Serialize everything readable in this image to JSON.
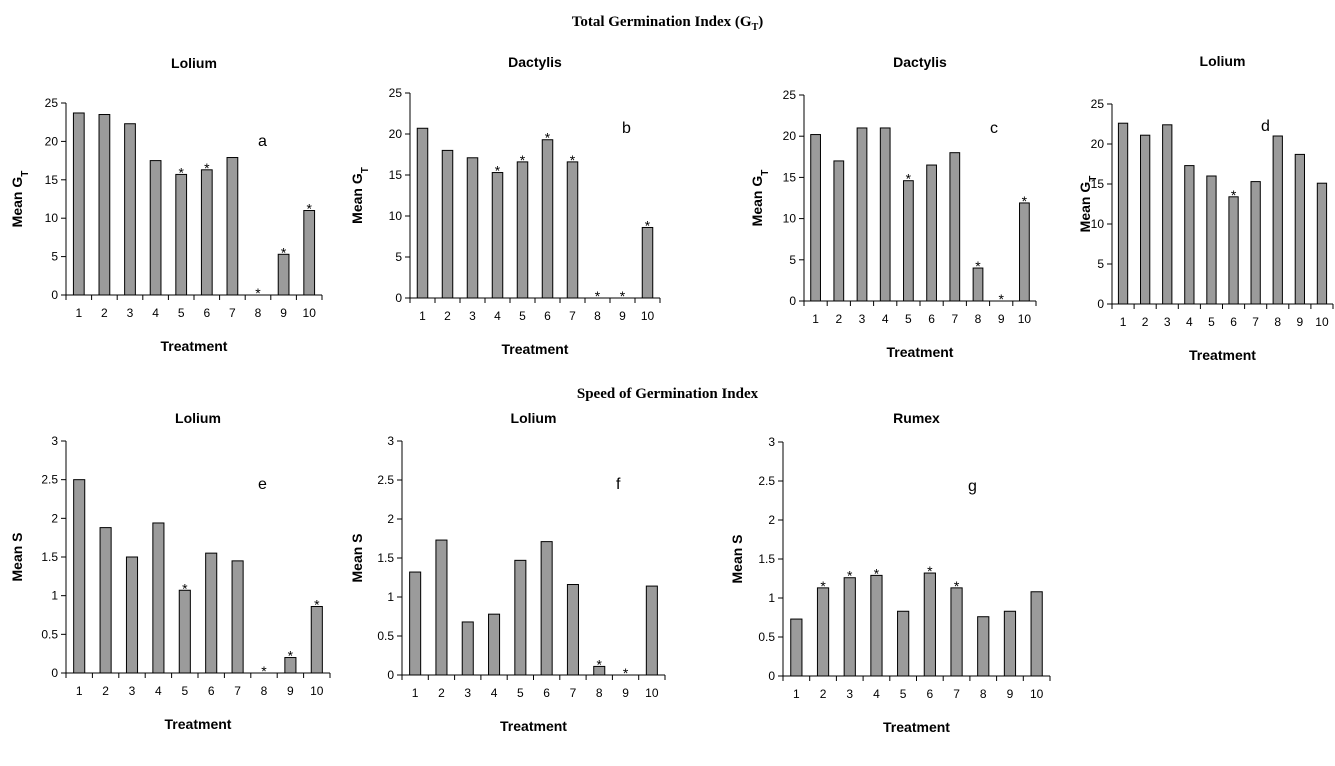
{
  "figure": {
    "top_title": "Total Germination Index (G",
    "top_title_sub": "T",
    "top_title_end": ")",
    "bottom_title": "Speed of Germination Index"
  },
  "chart_data": [
    {
      "type": "bar",
      "panel": "a",
      "title": "Lolium",
      "xlabel": "Treatment",
      "ylabel": "Mean G",
      "ylabel_sub": "T",
      "categories": [
        "1",
        "2",
        "3",
        "4",
        "5",
        "6",
        "7",
        "8",
        "9",
        "10"
      ],
      "values": [
        23.7,
        23.5,
        22.3,
        17.5,
        15.7,
        16.3,
        17.9,
        0,
        5.3,
        11.0
      ],
      "significant": [
        false,
        false,
        false,
        false,
        true,
        true,
        false,
        true,
        true,
        true
      ],
      "ylim": [
        0,
        25
      ],
      "yticks": [
        0,
        5,
        10,
        15,
        20,
        25
      ],
      "ytick_labels": [
        "0",
        "5",
        "10",
        "15",
        "20",
        "25"
      ]
    },
    {
      "type": "bar",
      "panel": "b",
      "title": "Dactylis",
      "xlabel": "Treatment",
      "ylabel": "Mean G",
      "ylabel_sub": "T",
      "categories": [
        "1",
        "2",
        "3",
        "4",
        "5",
        "6",
        "7",
        "8",
        "9",
        "10"
      ],
      "values": [
        20.7,
        18.0,
        17.1,
        15.3,
        16.6,
        19.3,
        16.6,
        0,
        0,
        8.6
      ],
      "significant": [
        false,
        false,
        false,
        true,
        true,
        true,
        true,
        true,
        true,
        true
      ],
      "ylim": [
        0,
        25
      ],
      "yticks": [
        0,
        5,
        10,
        15,
        20,
        25
      ],
      "ytick_labels": [
        "0",
        "5",
        "10",
        "15",
        "20",
        "25"
      ]
    },
    {
      "type": "bar",
      "panel": "c",
      "title": "Dactylis",
      "xlabel": "Treatment",
      "ylabel": "Mean G",
      "ylabel_sub": "T",
      "categories": [
        "1",
        "2",
        "3",
        "4",
        "5",
        "6",
        "7",
        "8",
        "9",
        "10"
      ],
      "values": [
        20.2,
        17.0,
        21.0,
        21.0,
        14.6,
        16.5,
        18.0,
        4.0,
        0,
        11.9
      ],
      "significant": [
        false,
        false,
        false,
        false,
        true,
        false,
        false,
        true,
        true,
        true
      ],
      "ylim": [
        0,
        25
      ],
      "yticks": [
        0,
        5,
        10,
        15,
        20,
        25
      ],
      "ytick_labels": [
        "0",
        "5",
        "10",
        "15",
        "20",
        "25"
      ]
    },
    {
      "type": "bar",
      "panel": "d",
      "title": "Lolium",
      "xlabel": "Treatment",
      "ylabel": "Mean G",
      "ylabel_sub": "T",
      "categories": [
        "1",
        "2",
        "3",
        "4",
        "5",
        "6",
        "7",
        "8",
        "9",
        "10"
      ],
      "values": [
        22.6,
        21.1,
        22.4,
        17.3,
        16.0,
        13.4,
        15.3,
        21.0,
        18.7,
        15.1
      ],
      "significant": [
        false,
        false,
        false,
        false,
        false,
        true,
        false,
        false,
        false,
        false
      ],
      "ylim": [
        0,
        25
      ],
      "yticks": [
        0,
        5,
        10,
        15,
        20,
        25
      ],
      "ytick_labels": [
        "0",
        "5",
        "10",
        "15",
        "20",
        "25"
      ]
    },
    {
      "type": "bar",
      "panel": "e",
      "title": "Lolium",
      "xlabel": "Treatment",
      "ylabel": "Mean S",
      "ylabel_sub": "",
      "categories": [
        "1",
        "2",
        "3",
        "4",
        "5",
        "6",
        "7",
        "8",
        "9",
        "10"
      ],
      "values": [
        2.5,
        1.88,
        1.5,
        1.94,
        1.07,
        1.55,
        1.45,
        0,
        0.2,
        0.86
      ],
      "significant": [
        false,
        false,
        false,
        false,
        true,
        false,
        false,
        true,
        true,
        true
      ],
      "ylim": [
        0,
        3
      ],
      "yticks": [
        0,
        0.5,
        1,
        1.5,
        2,
        2.5,
        3
      ],
      "ytick_labels": [
        "0",
        "0.5",
        "1",
        "1.5",
        "2",
        "2.5",
        "3"
      ]
    },
    {
      "type": "bar",
      "panel": "f",
      "title": "Lolium",
      "xlabel": "Treatment",
      "ylabel": "Mean S",
      "ylabel_sub": "",
      "categories": [
        "1",
        "2",
        "3",
        "4",
        "5",
        "6",
        "7",
        "8",
        "9",
        "10"
      ],
      "values": [
        1.32,
        1.73,
        0.68,
        0.78,
        1.47,
        1.71,
        1.16,
        0.11,
        0,
        1.14
      ],
      "significant": [
        false,
        false,
        false,
        false,
        false,
        false,
        false,
        true,
        true,
        false
      ],
      "ylim": [
        0,
        3
      ],
      "yticks": [
        0,
        0.5,
        1,
        1.5,
        2,
        2.5,
        3
      ],
      "ytick_labels": [
        "0",
        "0.5",
        "1",
        "1.5",
        "2",
        "2.5",
        "3"
      ]
    },
    {
      "type": "bar",
      "panel": "g",
      "title": "Rumex",
      "xlabel": "Treatment",
      "ylabel": "Mean S",
      "ylabel_sub": "",
      "categories": [
        "1",
        "2",
        "3",
        "4",
        "5",
        "6",
        "7",
        "8",
        "9",
        "10"
      ],
      "values": [
        0.73,
        1.13,
        1.26,
        1.29,
        0.83,
        1.32,
        1.13,
        0.76,
        0.83,
        1.08
      ],
      "significant": [
        false,
        true,
        true,
        true,
        false,
        true,
        true,
        false,
        false,
        false
      ],
      "ylim": [
        0,
        3
      ],
      "yticks": [
        0,
        0.5,
        1,
        1.5,
        2,
        2.5,
        3
      ],
      "ytick_labels": [
        "0",
        "0.5",
        "1",
        "1.5",
        "2",
        "2.5",
        "3"
      ]
    }
  ],
  "colors": {
    "bar_fill": "#9b9b9b",
    "bar_stroke": "#000000",
    "axis": "#000000",
    "background": "#ffffff"
  },
  "significance_marker": "*"
}
